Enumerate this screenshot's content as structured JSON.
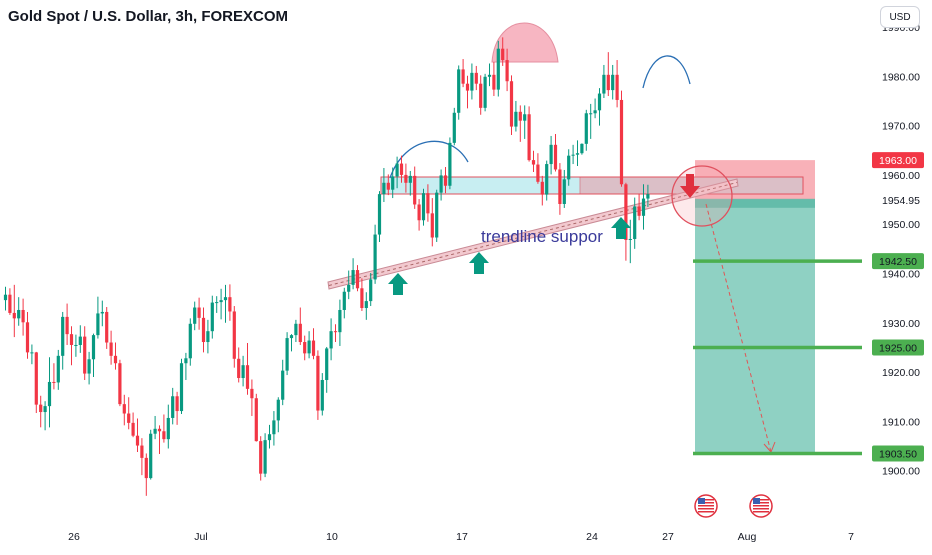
{
  "title": "Gold Spot / U.S. Dollar, 3h, FOREXCOM",
  "currency_button": "USD",
  "colors": {
    "up": "#089981",
    "down": "#f23645",
    "target_line": "#4caf50",
    "badge_green": "#4caf50",
    "badge_red": "#f23645",
    "profit_zone": "#89cfc0",
    "stop_zone": "#f7a8b0",
    "trendline": "#f2c9cf",
    "resistance_box": "#c8eef2",
    "arrow": "#089981",
    "head": "#f7b6c2",
    "shoulder": "#2a6fb4"
  },
  "chart_data": {
    "type": "candlestick",
    "ylim": [
      1895,
      1991
    ],
    "yticks": [
      "1900.00",
      "1910.00",
      "1920.00",
      "1930.00",
      "1940.00",
      "1950.00",
      "1954.95",
      "1960.00",
      "1970.00",
      "1980.00",
      "1990.00"
    ],
    "xticks": [
      "26",
      "Jul",
      "10",
      "17",
      "24",
      "27",
      "Aug",
      "7"
    ],
    "price_badges": [
      {
        "label": "1963.00",
        "value": 1963.0,
        "color": "red"
      },
      {
        "label": "1942.50",
        "value": 1942.5,
        "color": "green"
      },
      {
        "label": "1925.00",
        "value": 1925.0,
        "color": "green"
      },
      {
        "label": "1903.50",
        "value": 1903.5,
        "color": "green"
      }
    ],
    "annotation": "trendline suppor",
    "levels": {
      "stop": 1963.0,
      "entry": 1954.95,
      "targets": [
        1942.5,
        1925.0,
        1903.5
      ]
    },
    "series": [
      {
        "values": [
          [
            1934.6,
            1937.3,
            1932.5,
            1935.7
          ],
          [
            1935.7,
            1937.0,
            1931.6,
            1932.0
          ],
          [
            1932.0,
            1937.7,
            1927.1,
            1930.9
          ],
          [
            1930.9,
            1935.2,
            1929.4,
            1932.6
          ],
          [
            1932.6,
            1934.9,
            1927.4,
            1930.1
          ],
          [
            1930.1,
            1932.2,
            1922.7,
            1924.0
          ],
          [
            1924.0,
            1925.6,
            1921.6,
            1924.0
          ],
          [
            1924.0,
            1924.1,
            1911.7,
            1913.4
          ],
          [
            1913.4,
            1915.2,
            1908.8,
            1911.9
          ],
          [
            1911.9,
            1914.1,
            1908.2,
            1913.1
          ],
          [
            1913.1,
            1923.0,
            1908.8,
            1918.0
          ],
          [
            1918.0,
            1921.8,
            1916.5,
            1917.9
          ],
          [
            1917.9,
            1924.5,
            1916.4,
            1923.3
          ],
          [
            1923.3,
            1932.2,
            1920.5,
            1931.2
          ],
          [
            1931.2,
            1933.9,
            1925.5,
            1927.7
          ],
          [
            1927.7,
            1929.3,
            1921.4,
            1925.5
          ],
          [
            1925.5,
            1927.6,
            1923.1,
            1925.5
          ],
          [
            1925.5,
            1929.5,
            1923.9,
            1927.2
          ],
          [
            1927.2,
            1929.3,
            1918.4,
            1919.7
          ],
          [
            1919.7,
            1924.1,
            1917.5,
            1922.6
          ],
          [
            1922.6,
            1927.8,
            1919.0,
            1927.5
          ],
          [
            1927.5,
            1935.3,
            1926.8,
            1931.9
          ],
          [
            1931.9,
            1934.5,
            1929.3,
            1932.2
          ],
          [
            1932.2,
            1933.2,
            1924.7,
            1926.0
          ],
          [
            1926.0,
            1928.4,
            1921.5,
            1923.3
          ],
          [
            1923.3,
            1926.0,
            1920.5,
            1921.8
          ],
          [
            1921.8,
            1922.5,
            1913.1,
            1913.5
          ],
          [
            1913.5,
            1915.4,
            1909.2,
            1911.6
          ],
          [
            1911.6,
            1914.9,
            1908.4,
            1909.7
          ],
          [
            1909.7,
            1911.8,
            1906.8,
            1907.1
          ],
          [
            1907.1,
            1910.6,
            1903.8,
            1905.1
          ],
          [
            1905.1,
            1906.6,
            1899.1,
            1902.6
          ],
          [
            1902.6,
            1903.5,
            1894.9,
            1898.5
          ],
          [
            1898.5,
            1908.3,
            1898.2,
            1907.5
          ],
          [
            1907.5,
            1911.1,
            1906.4,
            1908.5
          ],
          [
            1908.5,
            1909.2,
            1903.4,
            1908.0
          ],
          [
            1908.0,
            1911.4,
            1905.7,
            1906.4
          ],
          [
            1906.4,
            1913.4,
            1904.5,
            1910.7
          ],
          [
            1910.7,
            1916.8,
            1909.4,
            1915.1
          ],
          [
            1915.1,
            1916.0,
            1909.3,
            1912.1
          ],
          [
            1912.1,
            1922.7,
            1911.5,
            1921.8
          ],
          [
            1921.8,
            1923.9,
            1918.4,
            1922.8
          ],
          [
            1922.8,
            1930.9,
            1921.3,
            1929.8
          ],
          [
            1929.8,
            1934.3,
            1928.5,
            1933.1
          ],
          [
            1933.1,
            1935.1,
            1928.6,
            1931.0
          ],
          [
            1931.0,
            1933.1,
            1924.0,
            1926.1
          ],
          [
            1926.1,
            1930.6,
            1923.8,
            1928.3
          ],
          [
            1928.3,
            1935.5,
            1926.8,
            1934.1
          ],
          [
            1934.1,
            1935.4,
            1932.0,
            1934.2
          ],
          [
            1934.2,
            1936.9,
            1930.7,
            1934.6
          ],
          [
            1934.6,
            1937.7,
            1930.0,
            1935.2
          ],
          [
            1935.2,
            1937.8,
            1930.4,
            1932.3
          ],
          [
            1932.3,
            1933.4,
            1920.9,
            1922.7
          ],
          [
            1922.7,
            1925.0,
            1917.9,
            1918.8
          ],
          [
            1918.8,
            1923.3,
            1917.1,
            1921.4
          ],
          [
            1921.4,
            1925.9,
            1915.4,
            1916.6
          ],
          [
            1916.6,
            1918.5,
            1911.1,
            1914.7
          ],
          [
            1914.7,
            1915.6,
            1905.9,
            1906.0
          ],
          [
            1906.0,
            1907.0,
            1898.0,
            1899.4
          ],
          [
            1899.4,
            1907.6,
            1898.7,
            1906.2
          ],
          [
            1906.2,
            1909.3,
            1904.5,
            1907.4
          ],
          [
            1907.4,
            1912.1,
            1905.1,
            1910.2
          ],
          [
            1910.2,
            1914.9,
            1907.8,
            1914.4
          ],
          [
            1914.4,
            1922.5,
            1913.3,
            1920.3
          ],
          [
            1920.3,
            1928.1,
            1919.4,
            1926.9
          ],
          [
            1926.9,
            1927.7,
            1924.2,
            1927.5
          ],
          [
            1927.5,
            1930.6,
            1926.1,
            1929.8
          ],
          [
            1929.8,
            1933.1,
            1925.5,
            1926.1
          ],
          [
            1926.1,
            1927.4,
            1922.4,
            1923.8
          ],
          [
            1923.8,
            1928.3,
            1922.8,
            1926.4
          ],
          [
            1926.4,
            1928.9,
            1922.6,
            1923.3
          ],
          [
            1923.3,
            1924.4,
            1910.3,
            1912.2
          ],
          [
            1912.2,
            1919.8,
            1911.2,
            1918.4
          ],
          [
            1918.4,
            1925.1,
            1915.8,
            1924.8
          ],
          [
            1924.8,
            1930.9,
            1922.4,
            1928.3
          ],
          [
            1928.3,
            1929.7,
            1926.1,
            1928.1
          ],
          [
            1928.1,
            1934.7,
            1925.3,
            1932.6
          ],
          [
            1932.6,
            1937.1,
            1930.9,
            1936.3
          ],
          [
            1936.3,
            1940.6,
            1934.8,
            1937.7
          ],
          [
            1937.7,
            1943.1,
            1936.8,
            1940.7
          ],
          [
            1940.7,
            1941.7,
            1936.4,
            1937.0
          ],
          [
            1937.0,
            1939.0,
            1932.4,
            1933.0
          ],
          [
            1933.0,
            1936.2,
            1930.6,
            1934.4
          ],
          [
            1934.4,
            1940.1,
            1933.4,
            1938.8
          ],
          [
            1938.8,
            1949.9,
            1937.9,
            1947.9
          ],
          [
            1947.9,
            1956.7,
            1946.4,
            1956.1
          ],
          [
            1956.1,
            1961.4,
            1954.5,
            1958.4
          ],
          [
            1958.4,
            1960.1,
            1955.9,
            1957.0
          ],
          [
            1957.0,
            1961.5,
            1955.3,
            1959.7
          ],
          [
            1959.7,
            1963.7,
            1957.3,
            1962.3
          ],
          [
            1962.3,
            1963.9,
            1958.4,
            1960.0
          ],
          [
            1960.0,
            1962.3,
            1956.4,
            1958.4
          ],
          [
            1958.4,
            1960.8,
            1955.8,
            1959.8
          ],
          [
            1959.8,
            1961.7,
            1953.1,
            1954.0
          ],
          [
            1954.0,
            1955.1,
            1948.7,
            1950.8
          ],
          [
            1950.8,
            1957.2,
            1949.7,
            1956.3
          ],
          [
            1956.3,
            1958.1,
            1950.5,
            1952.2
          ],
          [
            1952.2,
            1955.3,
            1945.5,
            1947.3
          ],
          [
            1947.3,
            1957.0,
            1946.4,
            1956.4
          ],
          [
            1956.4,
            1961.1,
            1954.8,
            1959.9
          ],
          [
            1959.9,
            1961.6,
            1956.3,
            1957.8
          ],
          [
            1957.8,
            1967.6,
            1957.1,
            1966.5
          ],
          [
            1966.5,
            1973.6,
            1966.0,
            1972.6
          ],
          [
            1972.6,
            1982.2,
            1971.2,
            1981.4
          ],
          [
            1981.4,
            1983.5,
            1977.8,
            1978.5
          ],
          [
            1978.5,
            1980.1,
            1973.5,
            1977.1
          ],
          [
            1977.1,
            1982.6,
            1975.3,
            1980.7
          ],
          [
            1980.7,
            1982.1,
            1977.2,
            1978.5
          ],
          [
            1978.5,
            1980.2,
            1972.2,
            1973.6
          ],
          [
            1973.6,
            1980.5,
            1972.9,
            1979.9
          ],
          [
            1979.9,
            1982.6,
            1978.0,
            1980.3
          ],
          [
            1980.3,
            1982.9,
            1976.0,
            1977.3
          ],
          [
            1977.3,
            1987.2,
            1975.9,
            1985.6
          ],
          [
            1985.6,
            1987.9,
            1982.1,
            1983.3
          ],
          [
            1983.3,
            1985.6,
            1977.0,
            1979.0
          ],
          [
            1979.0,
            1980.2,
            1968.1,
            1969.8
          ],
          [
            1969.8,
            1975.0,
            1968.8,
            1972.8
          ],
          [
            1972.8,
            1974.1,
            1966.7,
            1971.0
          ],
          [
            1971.0,
            1974.1,
            1967.3,
            1972.3
          ],
          [
            1972.3,
            1973.9,
            1962.7,
            1963.0
          ],
          [
            1963.0,
            1964.9,
            1960.6,
            1962.1
          ],
          [
            1962.1,
            1964.4,
            1958.2,
            1958.6
          ],
          [
            1958.6,
            1959.8,
            1953.8,
            1956.0
          ],
          [
            1956.0,
            1962.9,
            1954.8,
            1962.2
          ],
          [
            1962.2,
            1967.9,
            1960.1,
            1966.1
          ],
          [
            1966.1,
            1968.3,
            1960.7,
            1961.1
          ],
          [
            1961.1,
            1962.4,
            1951.9,
            1954.1
          ],
          [
            1954.1,
            1961.0,
            1953.3,
            1959.1
          ],
          [
            1959.1,
            1965.2,
            1957.8,
            1963.9
          ],
          [
            1963.9,
            1966.1,
            1962.2,
            1964.1
          ],
          [
            1964.1,
            1967.0,
            1961.8,
            1964.4
          ],
          [
            1964.4,
            1966.4,
            1964.1,
            1966.3
          ],
          [
            1966.3,
            1973.2,
            1964.9,
            1972.5
          ],
          [
            1972.5,
            1974.4,
            1967.3,
            1972.5
          ],
          [
            1972.5,
            1975.5,
            1971.5,
            1973.1
          ],
          [
            1973.1,
            1977.6,
            1970.0,
            1976.5
          ],
          [
            1976.5,
            1982.3,
            1975.6,
            1980.3
          ],
          [
            1980.3,
            1984.9,
            1976.0,
            1977.2
          ],
          [
            1977.2,
            1982.3,
            1975.3,
            1980.3
          ],
          [
            1980.3,
            1983.3,
            1973.7,
            1975.2
          ],
          [
            1975.2,
            1977.1,
            1957.6,
            1958.1
          ],
          [
            1958.1,
            1958.4,
            1942.6,
            1946.8
          ],
          [
            1946.8,
            1950.9,
            1942.1,
            1947.0
          ],
          [
            1947.0,
            1955.4,
            1945.0,
            1953.6
          ],
          [
            1953.6,
            1956.2,
            1950.8,
            1951.7
          ],
          [
            1951.7,
            1958.1,
            1948.9,
            1955.2
          ],
          [
            1955.2,
            1958.0,
            1953.5,
            1956.1
          ]
        ]
      }
    ]
  }
}
